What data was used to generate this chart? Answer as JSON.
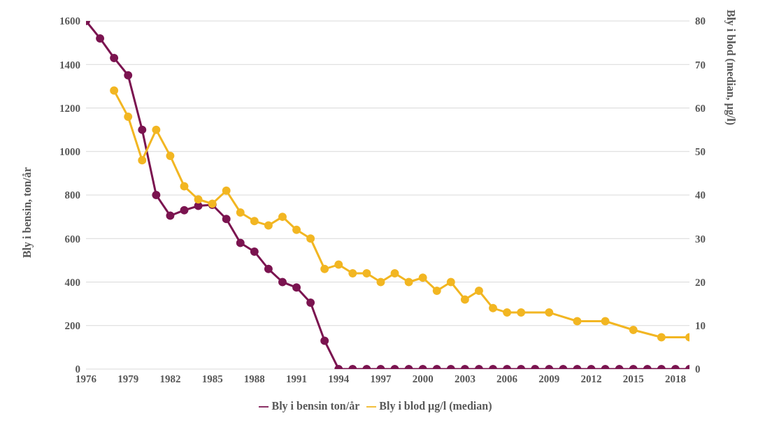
{
  "chart_data": {
    "type": "line",
    "x": [
      1976,
      1977,
      1978,
      1979,
      1980,
      1981,
      1982,
      1983,
      1984,
      1985,
      1986,
      1987,
      1988,
      1989,
      1990,
      1991,
      1992,
      1993,
      1994,
      1995,
      1996,
      1997,
      1998,
      1999,
      2000,
      2001,
      2002,
      2003,
      2004,
      2005,
      2006,
      2007,
      2008,
      2009,
      2010,
      2011,
      2012,
      2013,
      2014,
      2015,
      2016,
      2017,
      2018,
      2019
    ],
    "series": [
      {
        "name": "Bly i bensin ton/år",
        "color": "#7b1450",
        "values": [
          1600,
          1520,
          1430,
          1350,
          1100,
          800,
          705,
          730,
          750,
          755,
          690,
          580,
          540,
          460,
          400,
          375,
          305,
          130,
          0,
          0,
          0,
          0,
          0,
          0,
          0,
          0,
          0,
          0,
          0,
          0,
          0,
          0,
          0,
          0,
          0,
          0,
          0,
          0,
          0,
          0,
          0,
          0,
          0,
          0
        ]
      },
      {
        "name": "Bly i blod µg/l (median)",
        "color": "#f2b622",
        "axis": "y2",
        "x": [
          1978,
          1979,
          1980,
          1981,
          1982,
          1983,
          1984,
          1985,
          1986,
          1987,
          1988,
          1989,
          1990,
          1991,
          1992,
          1993,
          1994,
          1995,
          1996,
          1997,
          1998,
          1999,
          2000,
          2001,
          2002,
          2003,
          2004,
          2005,
          2006,
          2007,
          2009,
          2011,
          2013,
          2015,
          2017,
          2019
        ],
        "values": [
          64,
          58,
          48,
          55,
          49,
          42,
          39,
          38,
          41,
          36,
          34,
          33,
          35,
          32,
          30,
          23,
          24,
          22,
          22,
          20,
          22,
          20,
          21,
          18,
          20,
          16,
          18,
          14,
          13,
          13,
          13,
          11,
          11,
          9,
          7.3,
          7.3
        ]
      }
    ],
    "ylabel": "Bly i bensin, ton/år",
    "y2label": "Bly i blod (median, µg/l)",
    "xlim": [
      1976,
      2019
    ],
    "xticks": [
      1976,
      1979,
      1982,
      1985,
      1988,
      1991,
      1994,
      1997,
      2000,
      2003,
      2006,
      2009,
      2012,
      2015,
      2018
    ],
    "ylim": [
      0,
      1600
    ],
    "yticks": [
      0,
      200,
      400,
      600,
      800,
      1000,
      1200,
      1400,
      1600
    ],
    "y2lim": [
      0,
      80
    ],
    "y2ticks": [
      0,
      10,
      20,
      30,
      40,
      50,
      60,
      70,
      80
    ],
    "grid": "y",
    "legend": "bottom",
    "marker": "circle",
    "line_style": "solid"
  }
}
